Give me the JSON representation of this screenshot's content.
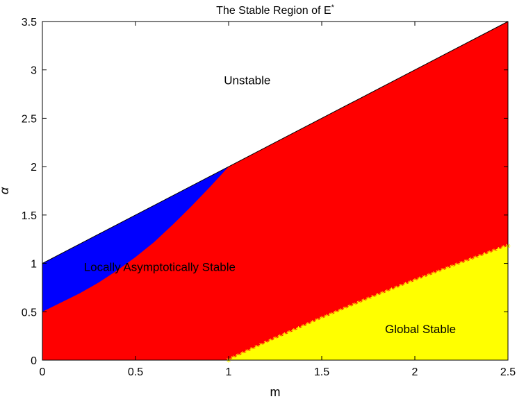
{
  "chart_data": {
    "type": "area",
    "title": "The Stable Region of E",
    "title_superscript": "*",
    "xlabel": "m",
    "ylabel": "α",
    "xlim": [
      0,
      2.5
    ],
    "ylim": [
      0,
      3.5
    ],
    "xticks": [
      0,
      0.5,
      1,
      1.5,
      2,
      2.5
    ],
    "xtick_labels": [
      "0",
      "0.5",
      "1",
      "1.5",
      "2",
      "2.5"
    ],
    "yticks": [
      0,
      0.5,
      1,
      1.5,
      2,
      2.5,
      3,
      3.5
    ],
    "ytick_labels": [
      "0",
      "0.5",
      "1",
      "1.5",
      "2",
      "2.5",
      "3",
      "3.5"
    ],
    "grid": false,
    "regions": [
      {
        "label": "Locally Asymptotically Stable",
        "color": "#ff0000",
        "upper_boundary": {
          "x": [
            0,
            1,
            2.5
          ],
          "y": [
            1,
            2,
            3.5
          ]
        },
        "lower_boundary": {
          "x": [
            0,
            2.5
          ],
          "y": [
            0,
            0
          ]
        }
      },
      {
        "label": "",
        "color": "#0000ff",
        "upper_boundary": {
          "x": [
            0,
            1
          ],
          "y": [
            1,
            2
          ]
        },
        "lower_boundary": {
          "x": [
            0,
            0.1,
            0.2,
            0.3,
            0.4,
            0.5,
            0.6,
            0.7,
            0.8,
            0.9,
            1.0
          ],
          "y": [
            0.5,
            0.595,
            0.69,
            0.8,
            0.925,
            1.065,
            1.22,
            1.4,
            1.59,
            1.79,
            2.0
          ]
        }
      },
      {
        "label": "Global Stable",
        "color": "#ffff00",
        "upper_boundary": {
          "x": [
            1,
            1.25,
            1.5,
            1.75,
            2,
            2.25,
            2.5
          ],
          "y": [
            0,
            0.22,
            0.43,
            0.63,
            0.82,
            1.0,
            1.18
          ]
        },
        "lower_boundary": {
          "x": [
            1,
            2.5
          ],
          "y": [
            0,
            0
          ]
        }
      },
      {
        "label": "Unstable",
        "color": "#ffffff"
      }
    ],
    "label_positions_data": {
      "Unstable": [
        1.1,
        2.85
      ],
      "Locally Asymptotically Stable": [
        0.63,
        0.92
      ],
      "Global Stable": [
        2.03,
        0.28
      ]
    }
  }
}
